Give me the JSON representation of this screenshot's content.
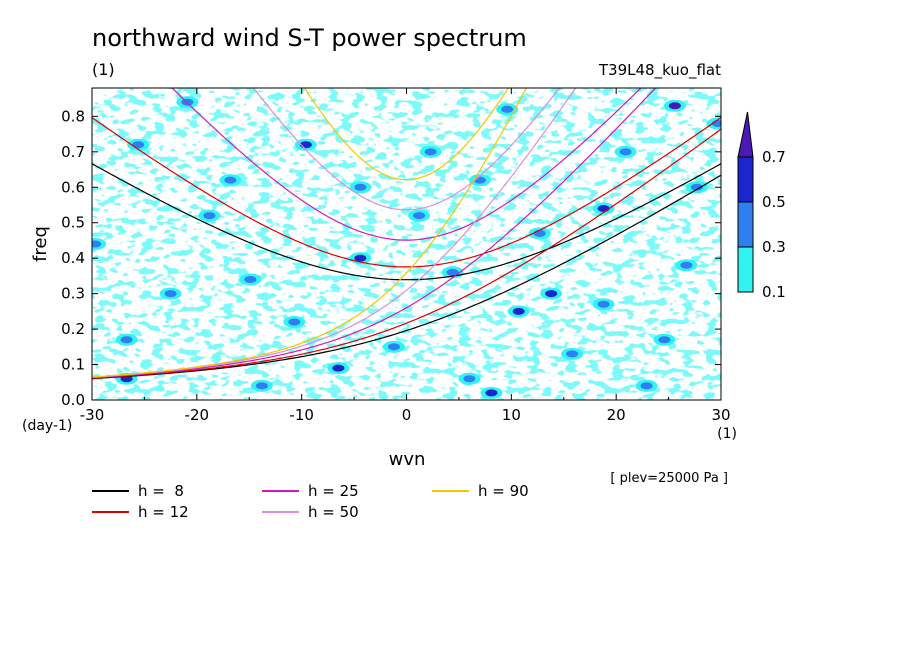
{
  "chart_data": {
    "type": "heatmap",
    "title": "northward wind S-T power spectrum",
    "subtitle_left": "(1)",
    "subtitle_right": "T39L48_kuo_flat",
    "xlabel": "wvn",
    "ylabel": "freq",
    "x_unit": "(1)",
    "y_unit": "(day-1)",
    "level_note": "[ plev=25000 Pa ]",
    "xlim": [
      -30,
      30
    ],
    "ylim": [
      0,
      0.88
    ],
    "xticks": [
      -30,
      -20,
      -10,
      0,
      10,
      20,
      30
    ],
    "xtick_labels": [
      "-30",
      "-20",
      "-10",
      "0",
      "10",
      "20",
      "30"
    ],
    "yticks": [
      0,
      0.1,
      0.2,
      0.3,
      0.4,
      0.5,
      0.6,
      0.7,
      0.8
    ],
    "ytick_labels": [
      "0.0",
      "0.1",
      "0.2",
      "0.3",
      "0.4",
      "0.5",
      "0.6",
      "0.7",
      "0.8"
    ],
    "colorbar": {
      "levels": [
        0.1,
        0.3,
        0.5,
        0.7
      ],
      "labels": [
        "0.1",
        "0.3",
        "0.5",
        "0.7"
      ],
      "colors": [
        "#33f2f2",
        "#2f7ff2",
        "#1b27cc",
        "#4a1ab4"
      ]
    },
    "spectrum_spots": [
      {
        "x": -6.5,
        "y": 0.09,
        "v": 0.6
      },
      {
        "x": -26.7,
        "y": 0.06,
        "v": 0.5
      },
      {
        "x": -4.4,
        "y": 0.4,
        "v": 0.5
      },
      {
        "x": -9.6,
        "y": 0.72,
        "v": 0.5
      },
      {
        "x": 13.8,
        "y": 0.3,
        "v": 0.6
      },
      {
        "x": 8.1,
        "y": 0.02,
        "v": 0.6
      },
      {
        "x": 10.7,
        "y": 0.25,
        "v": 0.5
      },
      {
        "x": 18.8,
        "y": 0.54,
        "v": 0.6
      },
      {
        "x": 25.6,
        "y": 0.83,
        "v": 0.7
      },
      {
        "x": 2.3,
        "y": 0.7,
        "v": 0.4
      },
      {
        "x": -18.8,
        "y": 0.52,
        "v": 0.4
      },
      {
        "x": -25.6,
        "y": 0.72,
        "v": 0.4
      },
      {
        "x": 26.7,
        "y": 0.38,
        "v": 0.4
      },
      {
        "x": -13.8,
        "y": 0.04,
        "v": 0.4
      },
      {
        "x": 15.8,
        "y": 0.13,
        "v": 0.4
      },
      {
        "x": 20.9,
        "y": 0.7,
        "v": 0.4
      },
      {
        "x": 4.4,
        "y": 0.36,
        "v": 0.4
      },
      {
        "x": -29.7,
        "y": 0.44,
        "v": 0.35
      },
      {
        "x": 29.7,
        "y": 0.78,
        "v": 0.4
      },
      {
        "x": -1.2,
        "y": 0.15,
        "v": 0.35
      },
      {
        "x": 6.0,
        "y": 0.06,
        "v": 0.4
      },
      {
        "x": 22.9,
        "y": 0.04,
        "v": 0.35
      },
      {
        "x": -22.5,
        "y": 0.3,
        "v": 0.3
      },
      {
        "x": -14.9,
        "y": 0.34,
        "v": 0.3
      },
      {
        "x": 12.7,
        "y": 0.47,
        "v": 0.3
      },
      {
        "x": -4.4,
        "y": 0.6,
        "v": 0.3
      },
      {
        "x": 9.6,
        "y": 0.82,
        "v": 0.3
      },
      {
        "x": -20.9,
        "y": 0.84,
        "v": 0.3
      },
      {
        "x": 27.7,
        "y": 0.6,
        "v": 0.3
      },
      {
        "x": 18.8,
        "y": 0.27,
        "v": 0.3
      },
      {
        "x": -10.7,
        "y": 0.22,
        "v": 0.3
      },
      {
        "x": 1.2,
        "y": 0.52,
        "v": 0.3
      },
      {
        "x": 24.6,
        "y": 0.17,
        "v": 0.3
      },
      {
        "x": -26.7,
        "y": 0.17,
        "v": 0.3
      },
      {
        "x": 7.0,
        "y": 0.62,
        "v": 0.3
      },
      {
        "x": -16.8,
        "y": 0.62,
        "v": 0.3
      }
    ],
    "series": [
      {
        "name": "h =  8",
        "color": "#000000",
        "h": 8
      },
      {
        "name": "h = 12",
        "color": "#dd0000",
        "h": 12
      },
      {
        "name": "h = 25",
        "color": "#d01ab8",
        "h": 25
      },
      {
        "name": "h = 50",
        "color": "#d890d8",
        "h": 50
      },
      {
        "name": "h = 90",
        "color": "#f0c800",
        "h": 90
      }
    ]
  }
}
